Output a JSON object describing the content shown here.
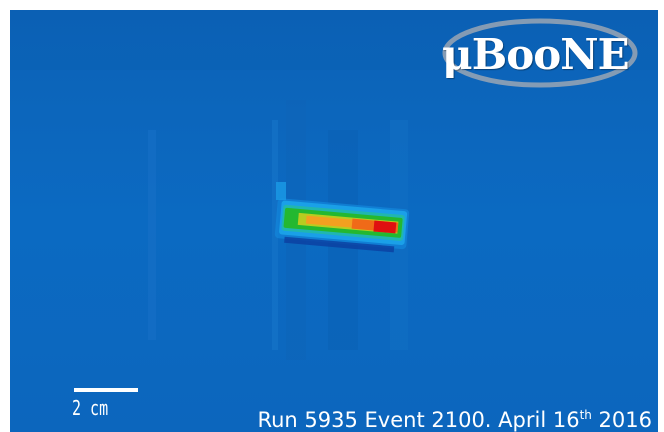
{
  "logo": {
    "text": "μBooNE"
  },
  "scale": {
    "label": "2 cm"
  },
  "caption": {
    "prefix": "Run 5935 Event 2100. April 16",
    "sup": "th",
    "suffix": " 2016"
  },
  "colors": {
    "background": "#0b68c0",
    "track_edge": "#1aa0e8",
    "track_mid": "#24b830",
    "track_core": "#f2a020",
    "track_peak": "#e01010",
    "text": "#ffffff"
  }
}
